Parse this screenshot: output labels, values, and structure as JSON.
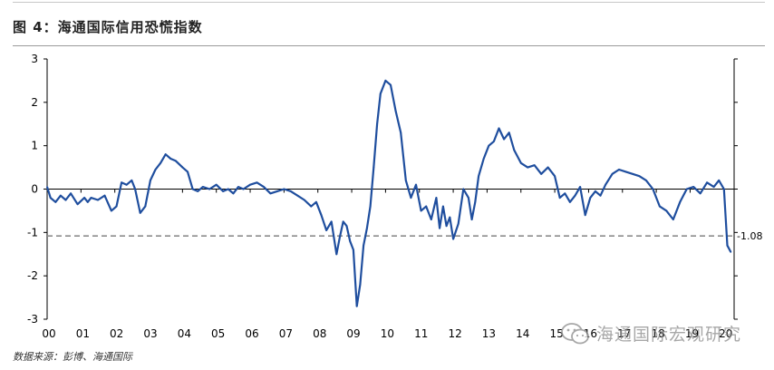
{
  "header": {
    "title": "图 4：海通国际信用恐慌指数"
  },
  "footer": {
    "source": "数据来源：彭博、海通国际"
  },
  "watermark": {
    "text": "海通国际宏观研究",
    "icon": "wechat-icon",
    "color": "#8a8a8a"
  },
  "chart_data": {
    "type": "line",
    "title": "海通国际信用恐慌指数",
    "xlabel": "",
    "ylabel": "",
    "x_tick_labels": [
      "00",
      "01",
      "02",
      "03",
      "04",
      "05",
      "06",
      "07",
      "08",
      "09",
      "10",
      "11",
      "12",
      "13",
      "14",
      "15",
      "16",
      "17",
      "18",
      "19",
      "20"
    ],
    "ylim": [
      -3,
      3
    ],
    "y_ticks": [
      3,
      2,
      1,
      0,
      -1,
      -2,
      -3
    ],
    "grid": false,
    "legend": "none",
    "line_color": "#1f4e9e",
    "reference_line": {
      "value": -1.08,
      "label": "-1.08",
      "style": "dashed",
      "color": "#8c8c8c"
    },
    "series": [
      {
        "x": [
          2000.0,
          2000.1,
          2000.25,
          2000.4,
          2000.55,
          2000.7,
          2000.9,
          2001.1,
          2001.2,
          2001.3,
          2001.5,
          2001.7,
          2001.9,
          2002.05,
          2002.2,
          2002.35,
          2002.5,
          2002.6,
          2002.75,
          2002.9,
          2003.05,
          2003.2,
          2003.35,
          2003.5,
          2003.65,
          2003.8,
          2004.0,
          2004.15,
          2004.3,
          2004.45,
          2004.6,
          2004.8,
          2005.0,
          2005.2,
          2005.35,
          2005.5,
          2005.65,
          2005.8,
          2006.0,
          2006.2,
          2006.4,
          2006.6,
          2006.8,
          2007.0,
          2007.2,
          2007.4,
          2007.6,
          2007.8,
          2007.95,
          2008.1,
          2008.25,
          2008.4,
          2008.55,
          2008.65,
          2008.75,
          2008.85,
          2008.95,
          2009.05,
          2009.15,
          2009.25,
          2009.35,
          2009.45,
          2009.55,
          2009.65,
          2009.75,
          2009.85,
          2010.0,
          2010.15,
          2010.3,
          2010.45,
          2010.6,
          2010.75,
          2010.9,
          2011.05,
          2011.2,
          2011.35,
          2011.5,
          2011.6,
          2011.7,
          2011.8,
          2011.9,
          2012.0,
          2012.15,
          2012.3,
          2012.45,
          2012.55,
          2012.65,
          2012.75,
          2012.9,
          2013.05,
          2013.2,
          2013.35,
          2013.5,
          2013.65,
          2013.8,
          2014.0,
          2014.2,
          2014.4,
          2014.6,
          2014.8,
          2015.0,
          2015.15,
          2015.3,
          2015.45,
          2015.6,
          2015.75,
          2015.9,
          2016.05,
          2016.2,
          2016.35,
          2016.5,
          2016.7,
          2016.9,
          2017.1,
          2017.3,
          2017.5,
          2017.7,
          2017.9,
          2018.1,
          2018.3,
          2018.5,
          2018.7,
          2018.9,
          2019.1,
          2019.3,
          2019.5,
          2019.7,
          2019.85,
          2020.0,
          2020.1,
          2020.2
        ],
        "values": [
          0.05,
          -0.2,
          -0.3,
          -0.15,
          -0.25,
          -0.1,
          -0.35,
          -0.2,
          -0.3,
          -0.2,
          -0.25,
          -0.15,
          -0.5,
          -0.4,
          0.15,
          0.1,
          0.2,
          0.0,
          -0.55,
          -0.4,
          0.2,
          0.45,
          0.6,
          0.8,
          0.7,
          0.65,
          0.5,
          0.4,
          0.0,
          -0.05,
          0.05,
          0.0,
          0.1,
          -0.05,
          0.0,
          -0.1,
          0.05,
          0.0,
          0.1,
          0.15,
          0.05,
          -0.1,
          -0.05,
          0.0,
          -0.05,
          -0.15,
          -0.25,
          -0.4,
          -0.3,
          -0.6,
          -0.95,
          -0.75,
          -1.5,
          -1.1,
          -0.75,
          -0.85,
          -1.2,
          -1.4,
          -2.7,
          -2.2,
          -1.3,
          -0.9,
          -0.4,
          0.5,
          1.5,
          2.2,
          2.5,
          2.4,
          1.8,
          1.3,
          0.2,
          -0.2,
          0.1,
          -0.5,
          -0.4,
          -0.7,
          -0.2,
          -0.9,
          -0.4,
          -0.85,
          -0.65,
          -1.15,
          -0.8,
          0.0,
          -0.2,
          -0.7,
          -0.3,
          0.3,
          0.7,
          1.0,
          1.1,
          1.4,
          1.15,
          1.3,
          0.9,
          0.6,
          0.5,
          0.55,
          0.35,
          0.5,
          0.3,
          -0.2,
          -0.1,
          -0.3,
          -0.15,
          0.05,
          -0.6,
          -0.2,
          -0.05,
          -0.15,
          0.1,
          0.35,
          0.45,
          0.4,
          0.35,
          0.3,
          0.2,
          0.0,
          -0.4,
          -0.5,
          -0.7,
          -0.3,
          0.0,
          0.05,
          -0.1,
          0.15,
          0.05,
          0.2,
          0.0,
          -1.3,
          -1.45
        ]
      }
    ]
  }
}
